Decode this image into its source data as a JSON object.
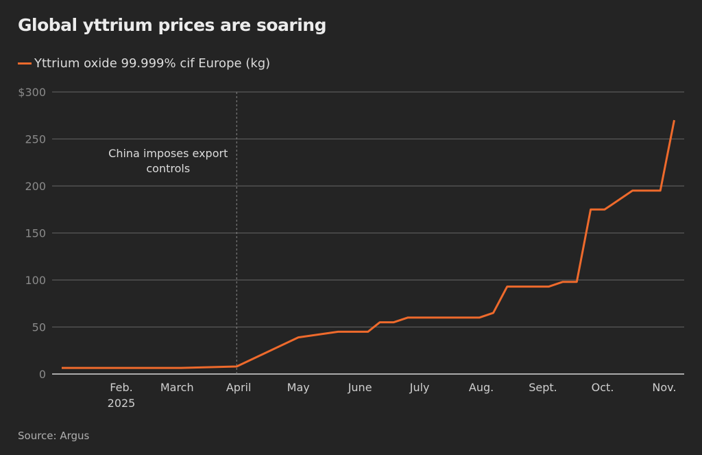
{
  "chart_data": {
    "type": "line",
    "title": "Global yttrium prices are soaring",
    "source": "Source: Argus",
    "xlim": [
      "2025-01-02",
      "2025-11-06"
    ],
    "ylim": [
      0,
      300
    ],
    "grid": true,
    "legend_placement": "top-left",
    "yticks": [
      {
        "value": 0,
        "label": "0"
      },
      {
        "value": 50,
        "label": "50"
      },
      {
        "value": 100,
        "label": "100"
      },
      {
        "value": 150,
        "label": "150"
      },
      {
        "value": 200,
        "label": "200"
      },
      {
        "value": 250,
        "label": "250"
      },
      {
        "value": 300,
        "label": "$300"
      }
    ],
    "xticks": [
      {
        "date": "2025-02-01",
        "label": "Feb.",
        "sublabel": "2025"
      },
      {
        "date": "2025-03-01",
        "label": "March"
      },
      {
        "date": "2025-04-01",
        "label": "April"
      },
      {
        "date": "2025-05-01",
        "label": "May"
      },
      {
        "date": "2025-06-01",
        "label": "June"
      },
      {
        "date": "2025-07-01",
        "label": "July"
      },
      {
        "date": "2025-08-01",
        "label": "Aug."
      },
      {
        "date": "2025-09-01",
        "label": "Sept."
      },
      {
        "date": "2025-10-01",
        "label": "Oct."
      },
      {
        "date": "2025-11-01",
        "label": "Nov."
      }
    ],
    "annotation": {
      "date": "2025-03-31",
      "lines": [
        "China imposes export",
        "controls"
      ]
    },
    "series": [
      {
        "name": "Yttrium oxide 99.999% cif Europe (kg)",
        "color": "#ee6a2c",
        "points": [
          [
            "2025-01-02",
            6.5
          ],
          [
            "2025-03-03",
            6.5
          ],
          [
            "2025-03-31",
            8
          ],
          [
            "2025-05-01",
            39
          ],
          [
            "2025-05-21",
            45
          ],
          [
            "2025-06-05",
            45
          ],
          [
            "2025-06-11",
            55
          ],
          [
            "2025-06-18",
            55
          ],
          [
            "2025-06-25",
            60
          ],
          [
            "2025-07-31",
            60
          ],
          [
            "2025-08-07",
            65
          ],
          [
            "2025-08-14",
            93
          ],
          [
            "2025-09-04",
            93
          ],
          [
            "2025-09-11",
            98
          ],
          [
            "2025-09-18",
            98
          ],
          [
            "2025-09-25",
            175
          ],
          [
            "2025-10-02",
            175
          ],
          [
            "2025-10-16",
            195
          ],
          [
            "2025-10-30",
            195
          ],
          [
            "2025-11-06",
            270
          ]
        ]
      }
    ]
  }
}
